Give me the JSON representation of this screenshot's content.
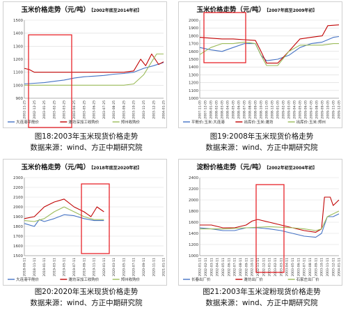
{
  "chart_data": [
    {
      "type": "line",
      "title": "玉米价格走势（元/吨）",
      "subtitle": "【2002年底至2014年初】",
      "ylim": [
        900,
        1500
      ],
      "yticks": [
        900,
        1000,
        1100,
        1200,
        1300,
        1400,
        1500
      ],
      "xticks": [
        "2002-11-25",
        "2002-12-25",
        "2003-01-25",
        "2003-02-25",
        "2003-03-25",
        "2003-04-25",
        "2003-05-25",
        "2003-06-25",
        "2003-07-25",
        "2003-08-25",
        "2003-09-25",
        "2003-10-25",
        "2003-11-25",
        "2003-12-25",
        "2004-01-25"
      ],
      "series": [
        {
          "name": "大连港平舱价",
          "color": "#4472c4",
          "points": [
            [
              0,
              1010
            ],
            [
              1,
              1015
            ],
            [
              2,
              1020
            ],
            [
              3,
              1030
            ],
            [
              4,
              1040
            ],
            [
              5,
              1055
            ],
            [
              6,
              1065
            ],
            [
              7,
              1070
            ],
            [
              8,
              1075
            ],
            [
              9,
              1085
            ],
            [
              10,
              1090
            ],
            [
              11,
              1100
            ],
            [
              12,
              1130
            ],
            [
              13,
              1150
            ],
            [
              14,
              1175
            ]
          ]
        },
        {
          "name": "潍坊深加工收购价",
          "color": "#c00000",
          "points": [
            [
              0,
              1130
            ],
            [
              0.5,
              1120
            ],
            [
              1,
              1100
            ],
            [
              2,
              1100
            ],
            [
              3,
              1100
            ],
            [
              4,
              1100
            ],
            [
              5,
              1100
            ],
            [
              6,
              1100
            ],
            [
              7,
              1100
            ],
            [
              8,
              1100
            ],
            [
              9,
              1100
            ],
            [
              10,
              1100
            ],
            [
              11,
              1110
            ],
            [
              11.7,
              1200
            ],
            [
              12.2,
              1150
            ],
            [
              12.8,
              1240
            ],
            [
              13.5,
              1160
            ],
            [
              14,
              1180
            ]
          ]
        },
        {
          "name": "郑州收购价",
          "color": "#9bbb59",
          "points": [
            [
              0,
              1000
            ],
            [
              3,
              1000
            ],
            [
              6,
              1000
            ],
            [
              8,
              1000
            ],
            [
              10,
              1000
            ],
            [
              11,
              1010
            ],
            [
              12,
              1080
            ],
            [
              12.8,
              1180
            ],
            [
              13.3,
              1240
            ],
            [
              14,
              1240
            ]
          ]
        }
      ]
    },
    {
      "type": "line",
      "title": "玉米价格走势（元/吨）",
      "subtitle": "【2007年底至2009年初】",
      "ylim": [
        1000,
        2000
      ],
      "yticks": [
        1000,
        1100,
        1200,
        1300,
        1400,
        1500,
        1600,
        1700,
        1800,
        1900,
        2000
      ],
      "xticks": [
        "2007-11-05",
        "2007-12-05",
        "2008-01-05",
        "2008-02-05",
        "2008-03-05",
        "2008-04-05",
        "2008-05-05",
        "2008-06-05",
        "2008-07-05",
        "2008-08-05",
        "2008-09-05",
        "2008-10-05",
        "2008-11-05",
        "2008-12-05",
        "2009-01-05",
        "2009-02-05",
        "2009-03-05",
        "2009-04-05",
        "2009-05-05",
        "2009-06-05",
        "2009-07-05",
        "2009-08-05",
        "2009-09-05",
        "2009-10-05",
        "2009-11-05",
        "2009-12-05"
      ],
      "series": [
        {
          "name": "平舱价:玉米:大连港",
          "color": "#4472c4",
          "points": [
            [
              0,
              1650
            ],
            [
              2,
              1620
            ],
            [
              4,
              1600
            ],
            [
              6,
              1650
            ],
            [
              8,
              1700
            ],
            [
              10,
              1700
            ],
            [
              11,
              1550
            ],
            [
              12,
              1480
            ],
            [
              14,
              1500
            ],
            [
              16,
              1550
            ],
            [
              18,
              1650
            ],
            [
              20,
              1700
            ],
            [
              22,
              1720
            ],
            [
              24,
              1780
            ],
            [
              25,
              1790
            ]
          ]
        },
        {
          "name": "出库价:玉米:潍坊",
          "color": "#c00000",
          "points": [
            [
              0,
              1780
            ],
            [
              2,
              1770
            ],
            [
              4,
              1760
            ],
            [
              6,
              1760
            ],
            [
              8,
              1750
            ],
            [
              10,
              1740
            ],
            [
              11,
              1600
            ],
            [
              12,
              1450
            ],
            [
              14,
              1450
            ],
            [
              16,
              1600
            ],
            [
              18,
              1760
            ],
            [
              20,
              1780
            ],
            [
              22,
              1800
            ],
            [
              23,
              1930
            ],
            [
              25,
              1940
            ]
          ]
        },
        {
          "name": "出库价:玉米:郑州",
          "color": "#9bbb59",
          "points": [
            [
              0,
              1560
            ],
            [
              2,
              1650
            ],
            [
              4,
              1700
            ],
            [
              6,
              1700
            ],
            [
              8,
              1720
            ],
            [
              10,
              1700
            ],
            [
              11,
              1550
            ],
            [
              12,
              1420
            ],
            [
              14,
              1420
            ],
            [
              16,
              1600
            ],
            [
              18,
              1680
            ],
            [
              20,
              1680
            ],
            [
              22,
              1680
            ],
            [
              24,
              1700
            ],
            [
              25,
              1700
            ]
          ]
        }
      ]
    },
    {
      "type": "line",
      "title": "玉米价格走势（元/吨）",
      "subtitle": "【2018年底至2020年初】",
      "ylim": [
        1500,
        2300
      ],
      "yticks": [
        1500,
        1600,
        1700,
        1800,
        1900,
        2000,
        2100,
        2200,
        2300
      ],
      "xticks": [
        "2018-09-11",
        "2018-11-11",
        "2019-01-11",
        "2019-03-11",
        "2019-05-11",
        "2019-07-11",
        "2019-09-11",
        "2019-11-11",
        "2020-01-11",
        "2020-03-11",
        "2020-05-11",
        "2020-07-11",
        "2020-09-11",
        "2020-11-11",
        "2021-01-11"
      ],
      "series": [
        {
          "name": "大连港平舱价",
          "color": "#4472c4",
          "points": [
            [
              0,
              1830
            ],
            [
              1,
              1800
            ],
            [
              1.5,
              1870
            ],
            [
              2,
              1850
            ],
            [
              3,
              1880
            ],
            [
              4,
              1920
            ],
            [
              5,
              1910
            ],
            [
              6,
              1880
            ],
            [
              7,
              1860
            ],
            [
              8,
              1860
            ]
          ]
        },
        {
          "name": "潍坊深加工收购价",
          "color": "#c00000",
          "points": [
            [
              0,
              1880
            ],
            [
              1,
              1900
            ],
            [
              2,
              2000
            ],
            [
              3,
              2050
            ],
            [
              4,
              2080
            ],
            [
              5,
              2000
            ],
            [
              6,
              1950
            ],
            [
              6.7,
              1900
            ],
            [
              7.3,
              2000
            ],
            [
              8,
              1950
            ]
          ]
        },
        {
          "name": "郑州收购价",
          "color": "#9bbb59",
          "points": [
            [
              0,
              1860
            ],
            [
              1,
              1850
            ],
            [
              2,
              1880
            ],
            [
              3,
              1950
            ],
            [
              4,
              2000
            ],
            [
              5,
              1950
            ],
            [
              6,
              1900
            ],
            [
              7,
              1870
            ],
            [
              8,
              1870
            ]
          ]
        }
      ]
    },
    {
      "type": "line",
      "title": "淀粉价格走势（元/吨）",
      "subtitle": "【2002年初至2004年初】",
      "ylim": [
        1000,
        2400
      ],
      "yticks": [
        1000,
        1200,
        1400,
        1600,
        1800,
        2000,
        2200,
        2400
      ],
      "xticks": [
        "2002-01-11",
        "2002-02-11",
        "2002-03-11",
        "2002-04-11",
        "2002-05-11",
        "2002-06-11",
        "2002-07-11",
        "2002-08-11",
        "2002-09-11",
        "2002-10-11",
        "2002-11-11",
        "2002-12-11",
        "2003-01-11",
        "2003-02-11",
        "2003-03-11",
        "2003-04-11",
        "2003-05-11",
        "2003-06-11",
        "2003-07-11",
        "2003-08-11",
        "2003-09-11",
        "2003-10-11",
        "2003-11-11",
        "2003-12-11",
        "2004-01-11"
      ],
      "series": [
        {
          "name": "长春出厂价",
          "color": "#4472c4",
          "points": [
            [
              0,
              1500
            ],
            [
              2,
              1480
            ],
            [
              4,
              1450
            ],
            [
              6,
              1450
            ],
            [
              8,
              1500
            ],
            [
              10,
              1500
            ],
            [
              12,
              1480
            ],
            [
              14,
              1450
            ],
            [
              16,
              1400
            ],
            [
              18,
              1350
            ],
            [
              20,
              1330
            ],
            [
              21,
              1400
            ],
            [
              22,
              1700
            ],
            [
              23,
              1700
            ],
            [
              24,
              1750
            ]
          ]
        },
        {
          "name": "潍坊出厂价",
          "color": "#c00000",
          "points": [
            [
              0,
              1550
            ],
            [
              2,
              1550
            ],
            [
              4,
              1500
            ],
            [
              6,
              1500
            ],
            [
              8,
              1550
            ],
            [
              9,
              1620
            ],
            [
              10,
              1650
            ],
            [
              12,
              1600
            ],
            [
              14,
              1550
            ],
            [
              16,
              1500
            ],
            [
              18,
              1450
            ],
            [
              20,
              1420
            ],
            [
              21,
              1480
            ],
            [
              21.5,
              2050
            ],
            [
              22.5,
              2050
            ],
            [
              23,
              1900
            ],
            [
              24,
              2000
            ]
          ]
        },
        {
          "name": "石家庄出厂价",
          "color": "#9bbb59",
          "points": [
            [
              0,
              1480
            ],
            [
              4,
              1480
            ],
            [
              8,
              1500
            ],
            [
              12,
              1520
            ],
            [
              16,
              1500
            ],
            [
              18,
              1480
            ],
            [
              20,
              1450
            ],
            [
              21,
              1480
            ],
            [
              22,
              1700
            ],
            [
              24,
              1800
            ]
          ]
        }
      ]
    }
  ],
  "captions": [
    {
      "figure": "图18:2003年玉米现货价格走势",
      "source": "数据来源：wind、方正中期研究院"
    },
    {
      "figure": "图19:2008年玉米现货价格走势",
      "source": "数据来源：wind、方正中期研究院"
    },
    {
      "figure": "图20:2020年玉米现货价格走势",
      "source": "数据来源：wind、方正中期研究院"
    },
    {
      "figure": "图21:2003年玉米淀粉现货价格走势",
      "source": "数据来源：wind、方正中期研究院"
    }
  ]
}
